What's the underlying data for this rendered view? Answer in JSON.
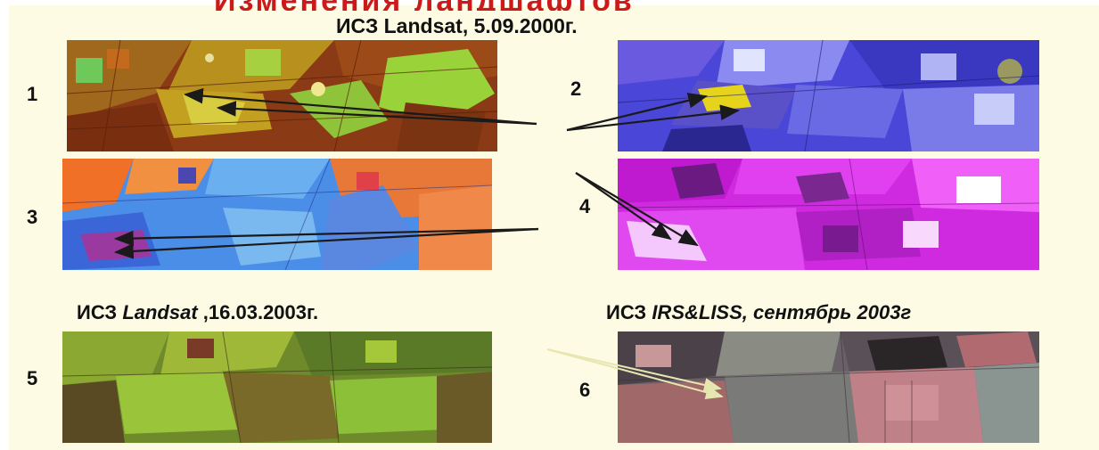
{
  "slide": {
    "cut_title": "Изменения ландшафтов",
    "header_top": "ИСЗ Landsat, 5.09.2000г.",
    "header_bottom_left": {
      "prefix": "ИСЗ ",
      "italic": "Landsat",
      "suffix": " ,16.03.2003г."
    },
    "header_bottom_right": {
      "prefix": "ИСЗ  ",
      "italic": "IRS&LISS,  сентябрь 2003г"
    },
    "panel_labels": [
      "1",
      "2",
      "3",
      "4",
      "5",
      "6"
    ]
  },
  "colors": {
    "background": "#fdfbe4",
    "title_red": "#cc1a1a",
    "arrow": "#1a1a1a",
    "arrow_light": "#e6e6b0"
  }
}
